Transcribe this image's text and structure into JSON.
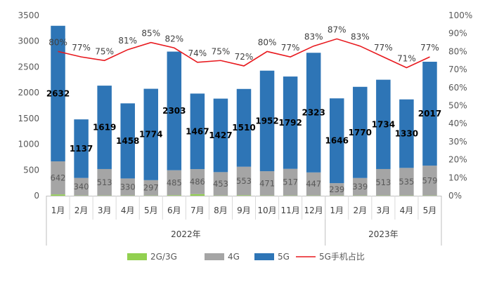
{
  "chart_data": {
    "type": "bar",
    "stacked": true,
    "categories": [
      "1月",
      "2月",
      "3月",
      "4月",
      "5月",
      "6月",
      "7月",
      "8月",
      "9月",
      "10月",
      "11月",
      "12月",
      "1月",
      "2月",
      "3月",
      "4月",
      "5月"
    ],
    "groups": [
      {
        "label": "2022年",
        "count": 12
      },
      {
        "label": "2023年",
        "count": 5
      }
    ],
    "series": [
      {
        "name": "2G/3G",
        "color": "#92d050",
        "values": [
          25,
          5,
          5,
          5,
          5,
          10,
          30,
          5,
          10,
          5,
          5,
          5,
          5,
          5,
          5,
          5,
          5
        ]
      },
      {
        "name": "4G",
        "color": "#a5a5a5",
        "values": [
          642,
          340,
          513,
          330,
          297,
          485,
          486,
          453,
          553,
          471,
          517,
          447,
          239,
          339,
          513,
          535,
          579
        ],
        "labels": [
          "642",
          "340",
          "513",
          "330",
          "297",
          "485",
          "486",
          "453",
          "553",
          "471",
          "517",
          "447",
          "239",
          "339",
          "513",
          "535",
          "579"
        ]
      },
      {
        "name": "5G",
        "color": "#2e75b6",
        "values": [
          2632,
          1137,
          1619,
          1458,
          1774,
          2303,
          1467,
          1427,
          1510,
          1952,
          1792,
          2323,
          1646,
          1770,
          1734,
          1330,
          2017
        ],
        "labels": [
          "2632",
          "1137",
          "1619",
          "1458",
          "1774",
          "2303",
          "1467",
          "1427",
          "1510",
          "1952",
          "1792",
          "2323",
          "1646",
          "1770",
          "1734",
          "1330",
          "2017"
        ]
      }
    ],
    "line_series": {
      "name": "5G手机占比",
      "color": "#e8191e",
      "axis": "right",
      "values": [
        80,
        77,
        75,
        81,
        85,
        82,
        74,
        75,
        72,
        80,
        77,
        83,
        87,
        83,
        77,
        71,
        77
      ],
      "labels": [
        "80%",
        "77%",
        "75%",
        "81%",
        "85%",
        "82%",
        "74%",
        "75%",
        "72%",
        "80%",
        "77%",
        "83%",
        "87%",
        "83%",
        "77%",
        "71%",
        "77%"
      ]
    },
    "ylim": [
      0,
      3500
    ],
    "yticks": [
      "0",
      "500",
      "1000",
      "1500",
      "2000",
      "2500",
      "3000",
      "3500"
    ],
    "y2lim": [
      0,
      100
    ],
    "y2ticks": [
      "0%",
      "10%",
      "20%",
      "30%",
      "40%",
      "50%",
      "60%",
      "70%",
      "80%",
      "90%",
      "100%"
    ],
    "legend": {
      "position": "bottom",
      "items": [
        {
          "label": "2G/3G",
          "kind": "bar",
          "color": "#92d050"
        },
        {
          "label": "4G",
          "kind": "bar",
          "color": "#a5a5a5"
        },
        {
          "label": "5G",
          "kind": "bar",
          "color": "#2e75b6"
        },
        {
          "label": "5G手机占比",
          "kind": "line",
          "color": "#e8191e"
        }
      ]
    },
    "grid": false
  }
}
